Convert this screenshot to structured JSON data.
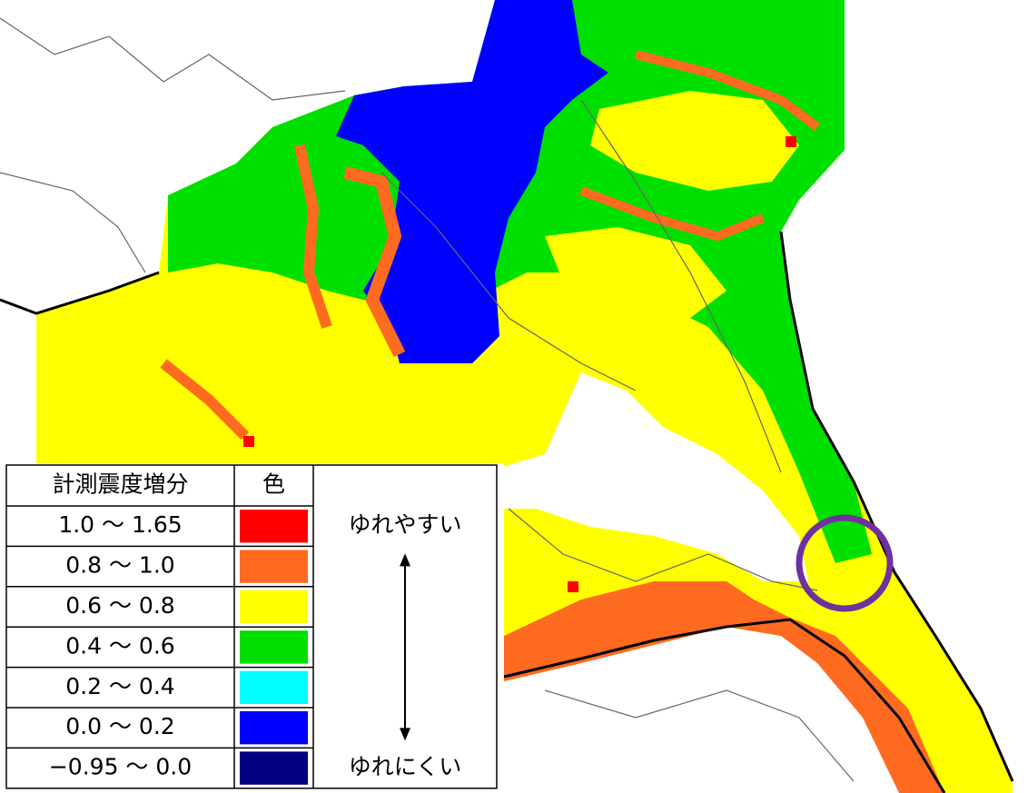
{
  "legend": {
    "headers": [
      "計測震度増分",
      "色"
    ],
    "rows": [
      {
        "range": "1.0 ～ 1.65",
        "color": "#ff0000"
      },
      {
        "range": "0.8 ～ 1.0",
        "color": "#ff6a21"
      },
      {
        "range": "0.6 ～ 0.8",
        "color": "#ffff00"
      },
      {
        "range": "0.4 ～ 0.6",
        "color": "#00e000"
      },
      {
        "range": "0.2 ～ 0.4",
        "color": "#00ffff"
      },
      {
        "range": "0.0 ～ 0.2",
        "color": "#0000ff"
      },
      {
        "range": "−0.95 ～ 0.0",
        "color": "#000080"
      }
    ],
    "high_label": "ゆれやすい",
    "low_label": "ゆれにくい"
  }
}
